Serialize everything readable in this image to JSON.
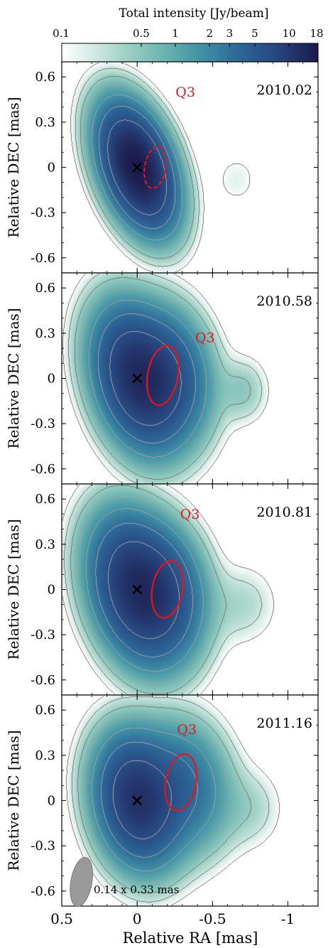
{
  "chart_data": {
    "type": "heatmap",
    "colorbar": {
      "label": "Total intensity [Jy/beam]",
      "tick_labels": [
        "0.1",
        "0.5",
        "1",
        "2",
        "3",
        "5",
        "10",
        "18"
      ],
      "ticks": [
        0.1,
        0.5,
        1,
        2,
        3,
        5,
        10,
        18
      ],
      "range": [
        0.1,
        18
      ],
      "scale": "log",
      "colormap": "white-teal-navy"
    },
    "xlabel": "Relative RA [mas]",
    "ylabel": "Relative DEC [mas]",
    "xlim": [
      0.5,
      -1.2
    ],
    "ylim": [
      -0.7,
      0.7
    ],
    "x_tick_labels": [
      "0.5",
      "0",
      "-0.5",
      "-1"
    ],
    "x_ticks": [
      0.5,
      0,
      -0.5,
      -1
    ],
    "y_tick_labels": [
      "0.6",
      "0.3",
      "0",
      "-0.3",
      "-0.6"
    ],
    "y_ticks": [
      0.6,
      0.3,
      0,
      -0.3,
      -0.6
    ],
    "panels": [
      {
        "epoch": "2010.02",
        "label": "Q3",
        "label_pos": [
          -0.32,
          0.47
        ],
        "core": [
          0,
          0
        ],
        "q3_ellipse": {
          "ra": -0.12,
          "dec": 0.0,
          "semi_ra": 0.07,
          "semi_dec": 0.14,
          "tilt_deg": 10
        },
        "components": [
          {
            "ra": 0.0,
            "dec": 0.0,
            "peak": 18,
            "sig_ra": 0.12,
            "sig_dec": 0.23,
            "tilt_deg": 20
          },
          {
            "ra": -0.66,
            "dec": -0.08,
            "peak": 0.15,
            "sig_ra": 0.1,
            "sig_dec": 0.12,
            "tilt_deg": 0
          }
        ]
      },
      {
        "epoch": "2010.58",
        "label": "Q3",
        "label_pos": [
          -0.45,
          0.24
        ],
        "core": [
          0,
          0
        ],
        "q3_ellipse": {
          "ra": -0.17,
          "dec": 0.02,
          "semi_ra": 0.1,
          "semi_dec": 0.2,
          "tilt_deg": 10
        },
        "components": [
          {
            "ra": 0.0,
            "dec": 0.0,
            "peak": 12,
            "sig_ra": 0.15,
            "sig_dec": 0.26,
            "tilt_deg": 15
          },
          {
            "ra": -0.22,
            "dec": 0.03,
            "peak": 5,
            "sig_ra": 0.15,
            "sig_dec": 0.24,
            "tilt_deg": 10
          },
          {
            "ra": -0.7,
            "dec": -0.08,
            "peak": 0.45,
            "sig_ra": 0.1,
            "sig_dec": 0.13,
            "tilt_deg": 0
          }
        ]
      },
      {
        "epoch": "2010.81",
        "label": "Q3",
        "label_pos": [
          -0.35,
          0.47
        ],
        "core": [
          0,
          0
        ],
        "q3_ellipse": {
          "ra": -0.2,
          "dec": 0.0,
          "semi_ra": 0.1,
          "semi_dec": 0.19,
          "tilt_deg": 10
        },
        "components": [
          {
            "ra": 0.0,
            "dec": 0.0,
            "peak": 12,
            "sig_ra": 0.16,
            "sig_dec": 0.27,
            "tilt_deg": 15
          },
          {
            "ra": -0.2,
            "dec": 0.0,
            "peak": 4,
            "sig_ra": 0.15,
            "sig_dec": 0.24,
            "tilt_deg": 10
          },
          {
            "ra": -0.7,
            "dec": -0.1,
            "peak": 0.3,
            "sig_ra": 0.14,
            "sig_dec": 0.16,
            "tilt_deg": 0
          }
        ]
      },
      {
        "epoch": "2011.16",
        "label": "Q3",
        "label_pos": [
          -0.33,
          0.44
        ],
        "core": [
          0,
          0
        ],
        "q3_ellipse": {
          "ra": -0.29,
          "dec": 0.12,
          "semi_ra": 0.1,
          "semi_dec": 0.19,
          "tilt_deg": 10
        },
        "components": [
          {
            "ra": 0.0,
            "dec": 0.0,
            "peak": 11,
            "sig_ra": 0.15,
            "sig_dec": 0.24,
            "tilt_deg": 10
          },
          {
            "ra": -0.3,
            "dec": 0.1,
            "peak": 3.5,
            "sig_ra": 0.17,
            "sig_dec": 0.24,
            "tilt_deg": 10
          },
          {
            "ra": -0.75,
            "dec": -0.05,
            "peak": 0.3,
            "sig_ra": 0.13,
            "sig_dec": 0.16,
            "tilt_deg": 0
          }
        ]
      }
    ],
    "beam": {
      "label": "0.14 x 0.33 mas",
      "major_mas": 0.33,
      "minor_mas": 0.14,
      "pa_deg": 10,
      "ra": 0.37,
      "dec": -0.54
    }
  }
}
